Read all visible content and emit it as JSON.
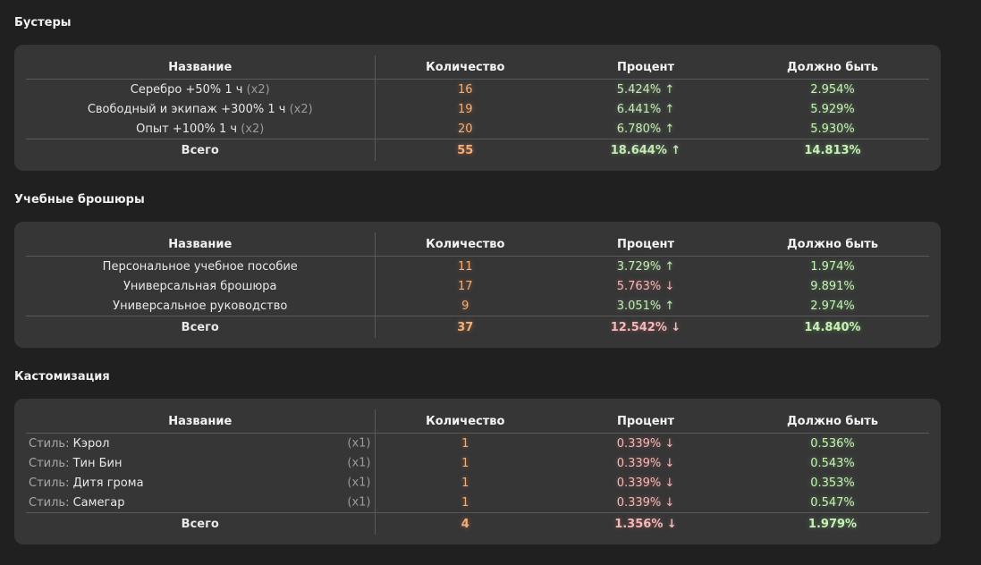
{
  "sections": [
    {
      "title": "Бустеры",
      "headers": {
        "name": "Название",
        "qty": "Количество",
        "pct": "Процент",
        "should": "Должно быть"
      },
      "rows": [
        {
          "name": "Серебро +50% 1 ч",
          "mult": "(x2)",
          "qty": "16",
          "pct": "5.424% ↑",
          "should": "2.954%"
        },
        {
          "name": "Свободный и экипаж +300% 1 ч",
          "mult": "(x2)",
          "qty": "19",
          "pct": "6.441% ↑",
          "should": "5.929%"
        },
        {
          "name": "Опыт +100% 1 ч",
          "mult": "(x2)",
          "qty": "20",
          "pct": "6.780% ↑",
          "should": "5.930%"
        }
      ],
      "total": {
        "label": "Всего",
        "qty": "55",
        "pct": "18.644% ↑",
        "should": "14.813%"
      }
    },
    {
      "title": "Учебные брошюры",
      "headers": {
        "name": "Название",
        "qty": "Количество",
        "pct": "Процент",
        "should": "Должно быть"
      },
      "rows": [
        {
          "name": "Персональное учебное пособие",
          "qty": "11",
          "pct": "3.729% ↑",
          "should": "1.974%"
        },
        {
          "name": "Универсальная брошюра",
          "qty": "17",
          "pct": "5.763% ↓",
          "should": "9.891%"
        },
        {
          "name": "Универсальное руководство",
          "qty": "9",
          "pct": "3.051% ↑",
          "should": "2.974%"
        }
      ],
      "total": {
        "label": "Всего",
        "qty": "37",
        "pct": "12.542% ↓",
        "should": "14.840%"
      }
    },
    {
      "title": "Кастомизация",
      "headers": {
        "name": "Название",
        "qty": "Количество",
        "pct": "Процент",
        "should": "Должно быть"
      },
      "rows": [
        {
          "prefix": "Стиль:",
          "name": "Кэрол",
          "mult": "(x1)",
          "qty": "1",
          "pct": "0.339% ↓",
          "should": "0.536%"
        },
        {
          "prefix": "Стиль:",
          "name": "Тин Бин",
          "mult": "(x1)",
          "qty": "1",
          "pct": "0.339% ↓",
          "should": "0.543%"
        },
        {
          "prefix": "Стиль:",
          "name": "Дитя грома",
          "mult": "(x1)",
          "qty": "1",
          "pct": "0.339% ↓",
          "should": "0.353%"
        },
        {
          "prefix": "Стиль:",
          "name": "Самегар",
          "mult": "(x1)",
          "qty": "1",
          "pct": "0.339% ↓",
          "should": "0.547%"
        }
      ],
      "total": {
        "label": "Всего",
        "qty": "4",
        "pct": "1.356% ↓",
        "should": "1.979%"
      }
    }
  ],
  "colors": {
    "background": "#202020",
    "card": "#363636",
    "quantity": "#f2b07a",
    "percent_up": "#c9e8b8",
    "percent_down": "#f3b8b8",
    "should_be": "#c8f0b8"
  }
}
